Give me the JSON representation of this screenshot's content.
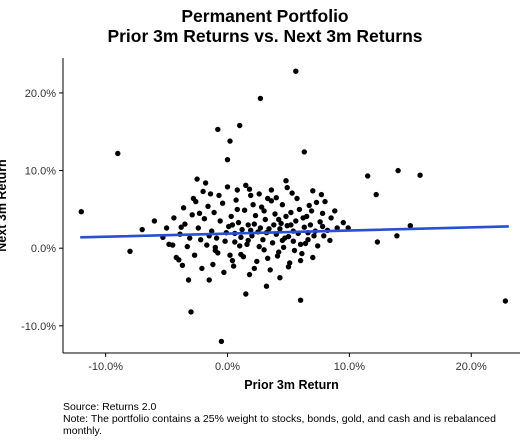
{
  "title_line1": "Permanent Portfolio",
  "title_line2": "Prior 3m Returns vs. Next 3m Returns",
  "caption_source": "Source: Returns 2.0",
  "caption_note": "Note: The portfolio contains a 25% weight to stocks, bonds, gold, and cash and is rebalanced monthly.",
  "colors": {
    "points": "#000000",
    "trend_line": "#2a4fd6",
    "axis": "#000000",
    "tick_label": "#333333"
  },
  "chart_data": {
    "type": "scatter",
    "title": "Permanent Portfolio Prior 3m Returns vs. Next 3m Returns",
    "xlabel": "Prior 3m Return",
    "ylabel": "Next 3m Return",
    "xlim": [
      -13.5,
      24.0
    ],
    "ylim": [
      -13.5,
      24.5
    ],
    "x_ticks": [
      -10,
      0,
      10,
      20
    ],
    "x_tick_labels": [
      "-10.0%",
      "0.0%",
      "10.0%",
      "20.0%"
    ],
    "y_ticks": [
      -10,
      0,
      10,
      20
    ],
    "y_tick_labels": [
      "-10.0%",
      "0.0%",
      "10.0%",
      "20.0%"
    ],
    "grid": false,
    "trend_line": {
      "x": [
        -12.0,
        23.0
      ],
      "y": [
        1.4,
        2.8
      ]
    },
    "points": [
      [
        5.6,
        22.8
      ],
      [
        2.7,
        19.3
      ],
      [
        6.3,
        12.4
      ],
      [
        -0.8,
        15.3
      ],
      [
        1.0,
        15.8
      ],
      [
        0.2,
        13.8
      ],
      [
        0.0,
        11.4
      ],
      [
        -9.0,
        12.2
      ],
      [
        -12.0,
        4.7
      ],
      [
        -8.0,
        -0.4
      ],
      [
        -7.0,
        2.4
      ],
      [
        -6.0,
        3.5
      ],
      [
        -5.0,
        2.6
      ],
      [
        -4.5,
        0.4
      ],
      [
        -4.2,
        -1.2
      ],
      [
        -3.7,
        -2.2
      ],
      [
        -3.2,
        -4.1
      ],
      [
        -3.0,
        -8.2
      ],
      [
        -1.5,
        -4.1
      ],
      [
        -1.0,
        -0.3
      ],
      [
        -0.5,
        -12.0
      ],
      [
        1.5,
        -5.9
      ],
      [
        3.2,
        -4.9
      ],
      [
        4.3,
        -3.8
      ],
      [
        6.0,
        -6.7
      ],
      [
        -2.5,
        8.9
      ],
      [
        -1.8,
        8.4
      ],
      [
        -2.0,
        7.3
      ],
      [
        -2.8,
        6.4
      ],
      [
        -0.7,
        6.8
      ],
      [
        0.8,
        7.5
      ],
      [
        1.8,
        7.6
      ],
      [
        3.6,
        7.5
      ],
      [
        4.8,
        8.7
      ],
      [
        4.9,
        7.8
      ],
      [
        7.0,
        7.4
      ],
      [
        7.7,
        6.9
      ],
      [
        8.0,
        6.0
      ],
      [
        7.8,
        4.5
      ],
      [
        8.5,
        3.9
      ],
      [
        9.0,
        2.6
      ],
      [
        9.5,
        3.3
      ],
      [
        9.9,
        2.6
      ],
      [
        11.5,
        9.3
      ],
      [
        12.2,
        6.9
      ],
      [
        12.3,
        0.8
      ],
      [
        14.0,
        10.0
      ],
      [
        13.9,
        1.6
      ],
      [
        15.0,
        2.9
      ],
      [
        15.8,
        9.4
      ],
      [
        22.8,
        -6.8
      ],
      [
        -3.9,
        1.8
      ],
      [
        -3.5,
        3.1
      ],
      [
        -2.9,
        4.3
      ],
      [
        -2.4,
        2.6
      ],
      [
        -2.2,
        1.1
      ],
      [
        -1.9,
        3.8
      ],
      [
        -1.6,
        5.4
      ],
      [
        -1.3,
        2.2
      ],
      [
        -1.1,
        4.6
      ],
      [
        -0.9,
        1.3
      ],
      [
        -0.6,
        3.5
      ],
      [
        -0.4,
        5.8
      ],
      [
        -0.2,
        0.9
      ],
      [
        0.1,
        2.8
      ],
      [
        0.3,
        4.1
      ],
      [
        0.4,
        -1.6
      ],
      [
        0.6,
        1.9
      ],
      [
        0.7,
        6.2
      ],
      [
        0.9,
        3.3
      ],
      [
        1.1,
        -0.8
      ],
      [
        1.2,
        2.4
      ],
      [
        1.4,
        4.9
      ],
      [
        1.6,
        0.5
      ],
      [
        1.7,
        3.0
      ],
      [
        1.9,
        6.8
      ],
      [
        2.0,
        1.6
      ],
      [
        2.2,
        -2.6
      ],
      [
        2.3,
        4.2
      ],
      [
        2.5,
        2.1
      ],
      [
        2.6,
        0.2
      ],
      [
        2.8,
        5.3
      ],
      [
        2.9,
        1.1
      ],
      [
        3.1,
        3.7
      ],
      [
        3.3,
        -1.3
      ],
      [
        3.4,
        2.5
      ],
      [
        3.6,
        6.1
      ],
      [
        3.7,
        0.7
      ],
      [
        3.9,
        4.4
      ],
      [
        4.0,
        1.8
      ],
      [
        4.2,
        -0.5
      ],
      [
        4.4,
        3.2
      ],
      [
        4.5,
        5.6
      ],
      [
        4.7,
        1.3
      ],
      [
        4.9,
        2.9
      ],
      [
        5.1,
        -1.9
      ],
      [
        5.2,
        4.6
      ],
      [
        5.4,
        0.9
      ],
      [
        5.6,
        3.5
      ],
      [
        5.8,
        1.9
      ],
      [
        5.9,
        5.0
      ],
      [
        6.1,
        -0.7
      ],
      [
        6.3,
        2.7
      ],
      [
        6.5,
        4.1
      ],
      [
        6.6,
        1.1
      ],
      [
        6.8,
        3.0
      ],
      [
        7.0,
        -1.2
      ],
      [
        7.2,
        2.2
      ],
      [
        7.4,
        0.3
      ],
      [
        7.6,
        3.4
      ],
      [
        7.9,
        1.6
      ],
      [
        8.2,
        2.3
      ],
      [
        -4.8,
        0.5
      ],
      [
        -4.0,
        -1.5
      ],
      [
        -3.3,
        0.2
      ],
      [
        -2.7,
        -0.9
      ],
      [
        -2.1,
        -2.6
      ],
      [
        -1.7,
        0.4
      ],
      [
        -1.2,
        -2.1
      ],
      [
        -0.8,
        -0.6
      ],
      [
        -0.3,
        -3.1
      ],
      [
        0.2,
        -0.9
      ],
      [
        0.5,
        -2.3
      ],
      [
        1.0,
        0.3
      ],
      [
        1.3,
        -1.1
      ],
      [
        1.8,
        -3.4
      ],
      [
        2.4,
        -1.7
      ],
      [
        3.0,
        -0.2
      ],
      [
        3.5,
        -2.8
      ],
      [
        4.1,
        -1.0
      ],
      [
        4.6,
        0.1
      ],
      [
        5.0,
        -2.4
      ],
      [
        5.5,
        -0.3
      ],
      [
        6.0,
        -1.6
      ],
      [
        6.4,
        0.6
      ],
      [
        -3.6,
        5.2
      ],
      [
        -2.6,
        6.0
      ],
      [
        -1.4,
        7.0
      ],
      [
        0.0,
        7.9
      ],
      [
        1.5,
        8.1
      ],
      [
        2.6,
        7.0
      ],
      [
        4.0,
        6.5
      ],
      [
        5.3,
        7.1
      ],
      [
        6.7,
        5.5
      ],
      [
        -4.4,
        3.9
      ],
      [
        -5.3,
        1.4
      ],
      [
        -3.1,
        1.3
      ],
      [
        0.8,
        5.0
      ],
      [
        2.1,
        5.6
      ],
      [
        3.3,
        6.4
      ],
      [
        4.8,
        4.1
      ],
      [
        5.7,
        6.4
      ],
      [
        6.9,
        4.8
      ],
      [
        7.3,
        5.9
      ],
      [
        -0.1,
        2.0
      ],
      [
        1.1,
        1.4
      ],
      [
        2.2,
        3.1
      ],
      [
        3.2,
        2.0
      ],
      [
        4.3,
        2.5
      ],
      [
        5.0,
        1.5
      ],
      [
        6.2,
        3.9
      ],
      [
        7.1,
        1.6
      ],
      [
        8.4,
        1.0
      ],
      [
        -2.3,
        4.5
      ],
      [
        -1.0,
        0.1
      ],
      [
        0.4,
        3.0
      ],
      [
        1.7,
        1.0
      ],
      [
        2.7,
        2.6
      ],
      [
        3.8,
        3.0
      ],
      [
        4.5,
        1.0
      ],
      [
        5.4,
        2.2
      ],
      [
        6.6,
        2.0
      ],
      [
        7.8,
        2.8
      ],
      [
        -1.5,
        1.6
      ],
      [
        0.6,
        0.8
      ],
      [
        1.9,
        2.3
      ],
      [
        3.0,
        4.8
      ],
      [
        4.2,
        3.7
      ],
      [
        5.2,
        3.0
      ],
      [
        6.0,
        0.5
      ],
      [
        8.8,
        4.8
      ],
      [
        -3.8,
        2.7
      ]
    ]
  }
}
